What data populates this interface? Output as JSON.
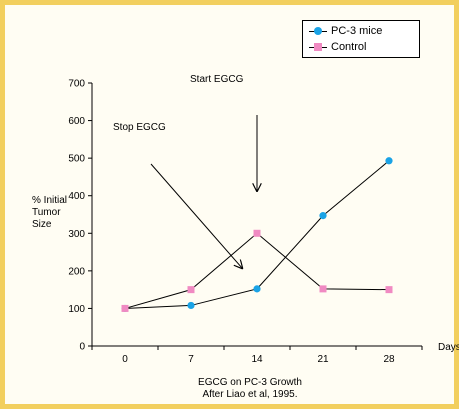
{
  "chart_data": {
    "type": "line",
    "title": "EGCG on PC-3 Growth",
    "subtitle": "After Liao et al, 1995.",
    "xlabel": "Days",
    "ylabel": [
      "% Initial",
      "Tumor",
      "Size"
    ],
    "x": [
      0,
      7,
      14,
      21,
      28
    ],
    "xlim": [
      -3.5,
      31.5
    ],
    "ylim": [
      0,
      700
    ],
    "yticks": [
      0,
      100,
      200,
      300,
      400,
      500,
      600,
      700
    ],
    "series": [
      {
        "name": "PC-3 mice",
        "color": "#1aa3e6",
        "marker": "circle",
        "values": [
          100,
          108,
          152,
          347,
          493
        ]
      },
      {
        "name": "Control",
        "color": "#f08ac2",
        "marker": "square",
        "values": [
          100,
          150,
          300,
          152,
          150
        ]
      }
    ],
    "annotations": [
      {
        "text": "Start EGCG",
        "points_to": {
          "x": 14,
          "y": 410
        }
      },
      {
        "text": "Stop EGCG",
        "points_to": {
          "x": 12.5,
          "y": 205
        }
      }
    ],
    "legend": "top-right",
    "grid": false
  }
}
